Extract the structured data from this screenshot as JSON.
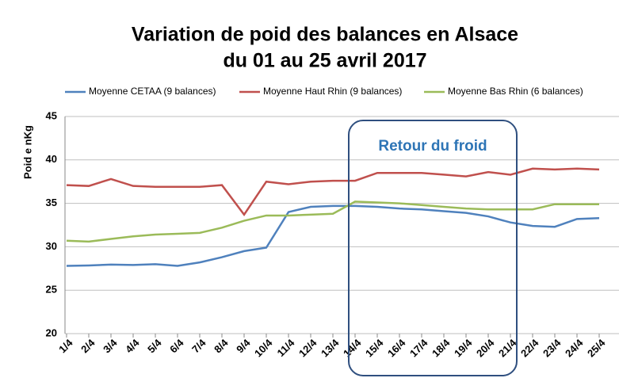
{
  "chart_data": {
    "type": "line",
    "title": "Variation de poid des balances en Alsace",
    "subtitle": "du 01 au 25 avril 2017",
    "y_label": "Poid e nKg",
    "annotation": "Retour du froid",
    "categories": [
      "1/4",
      "2/4",
      "3/4",
      "4/4",
      "5/4",
      "6/4",
      "7/4",
      "8/4",
      "9/4",
      "10/4",
      "11/4",
      "12/4",
      "13/4",
      "14/4",
      "15/4",
      "16/4",
      "17/4",
      "18/4",
      "19/4",
      "20/4",
      "21/4",
      "22/4",
      "23/4",
      "24/4",
      "25/4"
    ],
    "series": [
      {
        "name": "Moyenne CETAA (9 balances)",
        "color": "#4f81bd",
        "values": [
          27.8,
          27.85,
          27.95,
          27.9,
          28.0,
          27.8,
          28.2,
          28.8,
          29.5,
          29.9,
          34.0,
          34.6,
          34.7,
          34.7,
          34.6,
          34.4,
          34.3,
          34.1,
          33.9,
          33.5,
          32.8,
          32.4,
          32.3,
          33.2,
          33.3
        ]
      },
      {
        "name": "Moyenne Haut Rhin (9 balances)",
        "color": "#c0504d",
        "values": [
          37.1,
          37.0,
          37.8,
          37.0,
          36.9,
          36.9,
          36.9,
          37.1,
          33.7,
          37.5,
          37.2,
          37.5,
          37.6,
          37.6,
          38.5,
          38.5,
          38.5,
          38.3,
          38.1,
          38.6,
          38.3,
          39.0,
          38.9,
          39.0,
          38.9
        ]
      },
      {
        "name": "Moyenne Bas Rhin (6 balances)",
        "color": "#9bbb59",
        "values": [
          30.7,
          30.6,
          30.9,
          31.2,
          31.4,
          31.5,
          31.6,
          32.2,
          33.0,
          33.6,
          33.6,
          33.7,
          33.8,
          35.2,
          35.1,
          35.0,
          34.8,
          34.6,
          34.4,
          34.3,
          34.3,
          34.3,
          34.9,
          34.9,
          34.9
        ]
      }
    ],
    "ylim": [
      20,
      45
    ],
    "yticks": [
      20,
      25,
      30,
      35,
      40,
      45
    ],
    "grid": true
  }
}
